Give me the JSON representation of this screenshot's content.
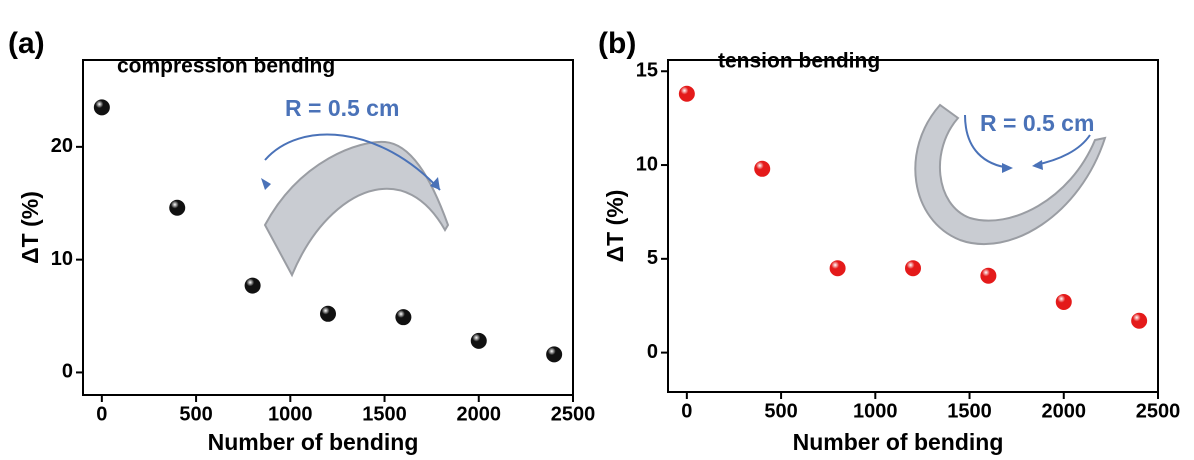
{
  "chart_data": [
    {
      "type": "scatter",
      "label": "(a)",
      "annotations": [
        "compression bending",
        "R = 0.5 cm"
      ],
      "xlabel": "Number of bending",
      "ylabel": "ΔT (%)",
      "xlim": [
        -100,
        2500
      ],
      "ylim": [
        -2,
        27.7
      ],
      "xticks": [
        0,
        500,
        1000,
        1500,
        2000,
        2500
      ],
      "yticks": [
        0,
        10,
        20
      ],
      "series": [
        {
          "color": "#111111",
          "x": [
            0,
            400,
            800,
            1200,
            1600,
            2000,
            2400
          ],
          "values": [
            23.5,
            14.6,
            7.7,
            5.2,
            4.9,
            2.8,
            1.6
          ]
        }
      ]
    },
    {
      "type": "scatter",
      "label": "(b)",
      "annotations": [
        "tension bending",
        "R = 0.5 cm"
      ],
      "xlabel": "Number of bending",
      "ylabel": "ΔT (%)",
      "xlim": [
        -100,
        2500
      ],
      "ylim": [
        -2.1,
        15.6
      ],
      "xticks": [
        0,
        500,
        1000,
        1500,
        2000,
        2500
      ],
      "yticks": [
        0,
        5,
        10,
        15
      ],
      "series": [
        {
          "color": "#e41a1a",
          "x": [
            0,
            400,
            800,
            1200,
            1600,
            2000,
            2400
          ],
          "values": [
            13.8,
            9.8,
            4.5,
            4.5,
            4.1,
            2.7,
            1.7
          ]
        }
      ]
    }
  ]
}
